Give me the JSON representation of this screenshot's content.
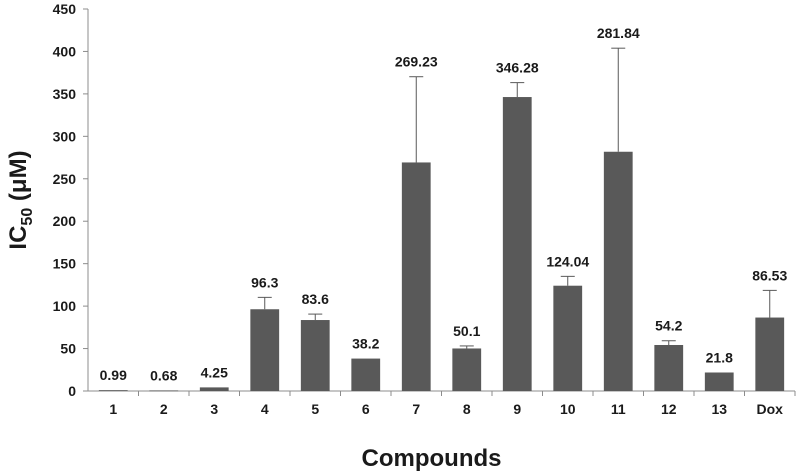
{
  "chart_data": {
    "type": "bar",
    "title": "",
    "xlabel": "Compounds",
    "ylabel": {
      "main": "IC",
      "subscript": "50",
      "unit": " (μM)"
    },
    "ylim": [
      0,
      450
    ],
    "yticks": [
      0,
      50,
      100,
      150,
      200,
      250,
      300,
      350,
      400,
      450
    ],
    "grid": false,
    "legend": "none",
    "bar_color": "#595959",
    "error_bar_color": "#595959",
    "categories": [
      "1",
      "2",
      "3",
      "4",
      "5",
      "6",
      "7",
      "8",
      "9",
      "10",
      "11",
      "12",
      "13",
      "Dox"
    ],
    "values": [
      0.99,
      0.68,
      4.25,
      96.3,
      83.6,
      38.2,
      269.23,
      50.1,
      346.28,
      124.04,
      281.84,
      54.2,
      21.8,
      86.53
    ],
    "value_labels": [
      "0.99",
      "0.68",
      "4.25",
      "96.3",
      "83.6",
      "38.2",
      "269.23",
      "50.1",
      "346.28",
      "124.04",
      "281.84",
      "54.2",
      "21.8",
      "86.53"
    ],
    "errors": [
      0.1,
      0.1,
      1.0,
      14,
      7,
      2,
      101,
      3,
      17,
      11,
      122,
      5,
      1.5,
      32
    ]
  }
}
